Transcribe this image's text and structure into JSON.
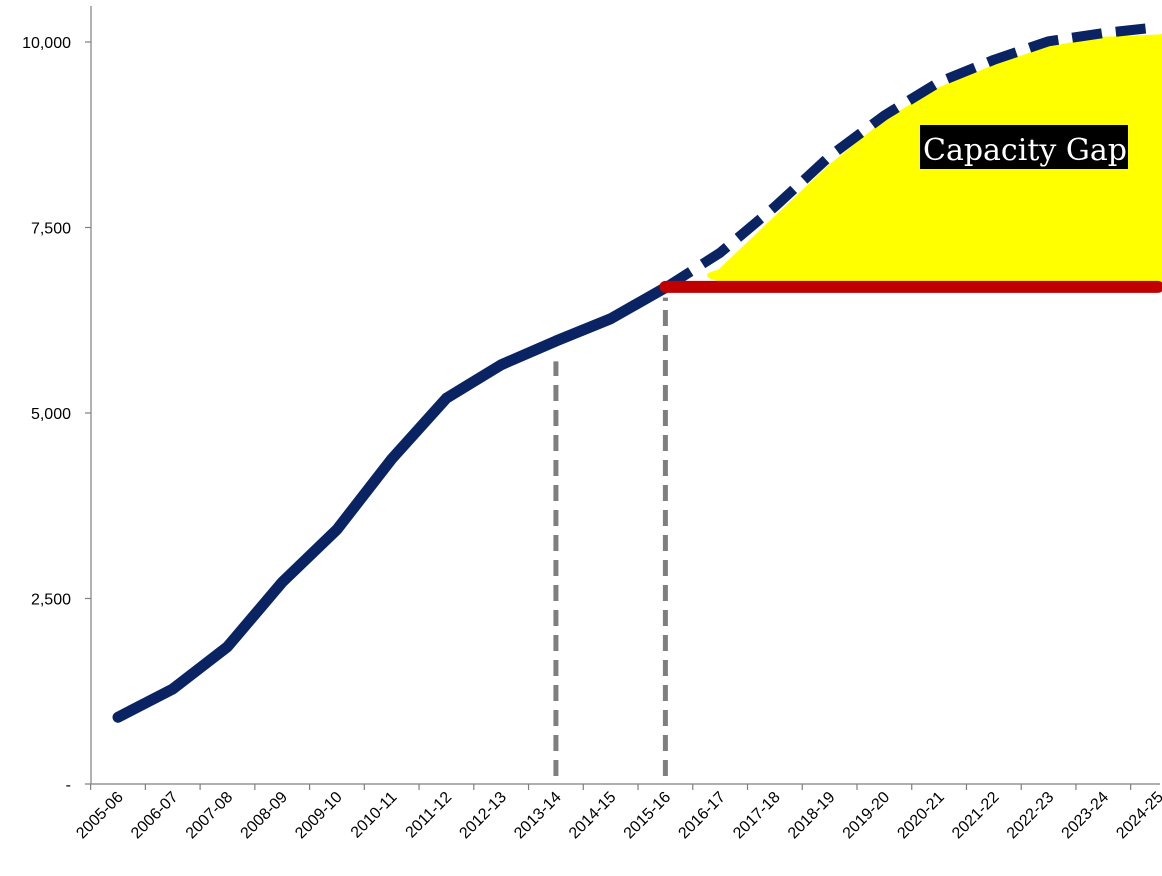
{
  "chart_data": {
    "type": "line",
    "categories": [
      "2005-06",
      "2006-07",
      "2007-08",
      "2008-09",
      "2009-10",
      "2010-11",
      "2011-12",
      "2012-13",
      "2013-14",
      "2014-15",
      "2015-16",
      "2016-17",
      "2017-18",
      "2018-19",
      "2019-20",
      "2020-21",
      "2021-22",
      "2022-23",
      "2023-24",
      "2024-25"
    ],
    "y_ticks": [
      {
        "value": 0,
        "label": "-"
      },
      {
        "value": 2500,
        "label": "2,500"
      },
      {
        "value": 5000,
        "label": "5,000"
      },
      {
        "value": 7500,
        "label": "7,500"
      },
      {
        "value": 10000,
        "label": "10,000"
      }
    ],
    "ylim": [
      0,
      10500
    ],
    "grid": false,
    "series": [
      {
        "style": "solid",
        "color": "#0a2463",
        "points": [
          {
            "x": "2005-06",
            "y": 900
          },
          {
            "x": "2006-07",
            "y": 1280
          },
          {
            "x": "2007-08",
            "y": 1850
          },
          {
            "x": "2008-09",
            "y": 2720
          },
          {
            "x": "2009-10",
            "y": 3430
          },
          {
            "x": "2010-11",
            "y": 4380
          },
          {
            "x": "2011-12",
            "y": 5200
          },
          {
            "x": "2012-13",
            "y": 5650
          },
          {
            "x": "2013-14",
            "y": 5970
          },
          {
            "x": "2014-15",
            "y": 6270
          },
          {
            "x": "2015-16",
            "y": 6690
          }
        ]
      },
      {
        "style": "dashed",
        "color": "#0a2463",
        "points": [
          {
            "x": "2015-16",
            "y": 6690
          },
          {
            "x": "2016-17",
            "y": 7160
          },
          {
            "x": "2017-18",
            "y": 7780
          },
          {
            "x": "2018-19",
            "y": 8460
          },
          {
            "x": "2019-20",
            "y": 9010
          },
          {
            "x": "2020-21",
            "y": 9460
          },
          {
            "x": "2021-22",
            "y": 9760
          },
          {
            "x": "2022-23",
            "y": 10010
          },
          {
            "x": "2023-24",
            "y": 10120
          },
          {
            "x": "2024-25",
            "y": 10200
          }
        ]
      },
      {
        "style": "solid",
        "color": "#c00000",
        "points": [
          {
            "x": "2015-16",
            "y": 6700
          },
          {
            "x": "2024-25",
            "y": 6700
          }
        ]
      }
    ],
    "reference_lines": [
      {
        "x": "2013-14",
        "y_top": 5830,
        "style": "dashed",
        "color": "#7f7f7f"
      },
      {
        "x": "2015-16",
        "y_top": 6690,
        "style": "dashed",
        "color": "#7f7f7f"
      }
    ],
    "shaded_region": {
      "label": "Capacity Gap",
      "color": "#ffff00",
      "label_bg": "#000000",
      "from": "2016-17",
      "to": "2024-25",
      "upper": [
        6900,
        7600,
        8300,
        8900,
        9350,
        9650,
        9900,
        10030,
        10060
      ],
      "lower": 6800
    }
  }
}
